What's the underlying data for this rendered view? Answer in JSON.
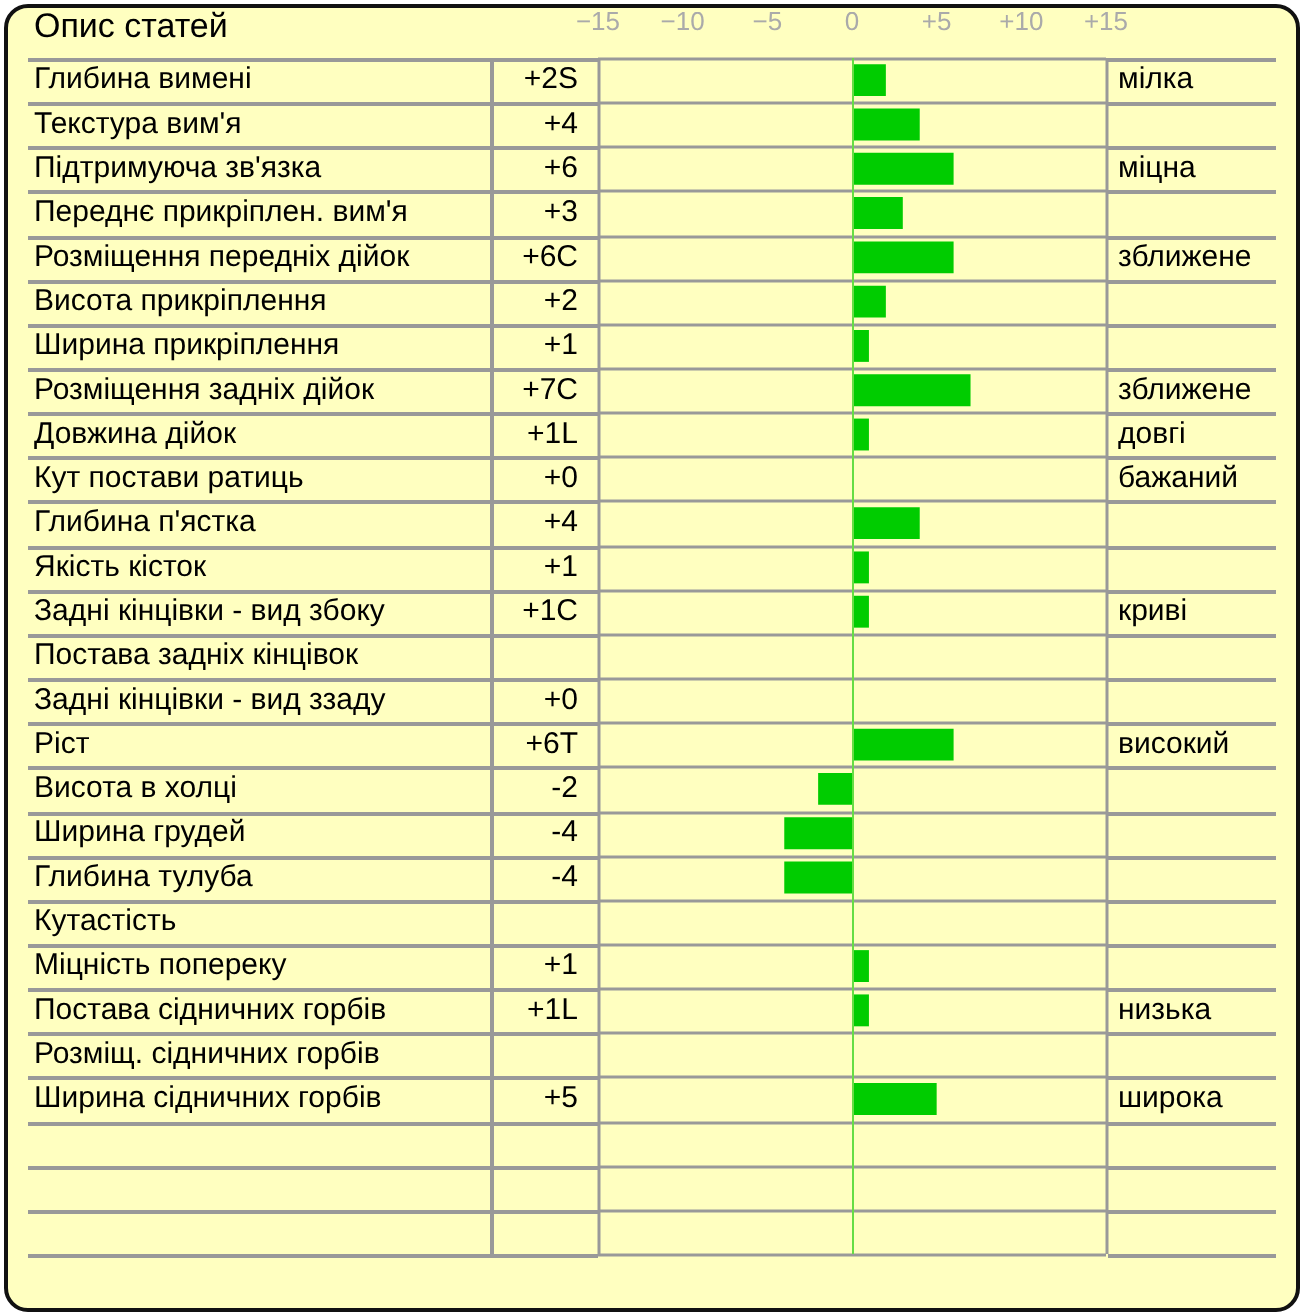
{
  "chart_data": {
    "type": "bar",
    "orientation": "horizontal",
    "title": "Опис статей",
    "categories": [
      "Глибина вимені",
      "Текстура вим'я",
      "Підтримуюча зв'язка",
      "Переднє прикріплен. вим'я",
      "Розміщення передніх дійок",
      "Висота прикріплення",
      "Ширина прикріплення",
      "Розміщення задніх дійок",
      "Довжина дійок",
      "Кут постави ратиць",
      "Глибина п'ястка",
      "Якість кісток",
      "Задні кінцівки - вид збоку",
      "Постава задніх кінцівок",
      "Задні кінцівки - вид ззаду",
      "Ріст",
      "Висота в холці",
      "Ширина грудей",
      "Глибина тулуба",
      "Кутастість",
      "Міцність попереку",
      "Постава сідничних горбів",
      "Розміщ. сідничних горбів",
      "Ширина сідничних горбів",
      null,
      null,
      null
    ],
    "values": [
      2,
      4,
      6,
      3,
      6,
      2,
      1,
      7,
      1,
      0,
      4,
      1,
      1,
      null,
      0,
      6,
      -2,
      -4,
      -4,
      null,
      1,
      1,
      null,
      5,
      null,
      null,
      null
    ],
    "value_labels": [
      "+2S",
      "+4",
      "+6",
      "+3",
      "+6C",
      "+2",
      "+1",
      "+7C",
      "+1L",
      "+0",
      "+4",
      "+1",
      "+1C",
      null,
      "+0",
      "+6T",
      "-2",
      "-4",
      "-4",
      null,
      "+1",
      "+1L",
      null,
      "+5",
      null,
      null,
      null
    ],
    "color": "#00cc00",
    "xlim": [
      -15,
      15
    ],
    "xticks": [
      {
        "value": -15,
        "label": "−15"
      },
      {
        "value": -10,
        "label": "−10"
      },
      {
        "value": -5,
        "label": "−5"
      },
      0,
      {
        "value": 5,
        "label": "+5"
      },
      {
        "value": 10,
        "label": "+10"
      },
      {
        "value": 15,
        "label": "+15"
      }
    ],
    "y2_categories": [
      "мілка",
      null,
      "міцна",
      null,
      "зближене",
      null,
      null,
      "зближене",
      "довгі",
      "бажаний",
      null,
      null,
      "криві",
      null,
      null,
      "високий",
      null,
      null,
      null,
      null,
      null,
      "низька",
      null,
      "широка",
      null,
      null,
      null
    ],
    "ref_lines": [
      {
        "axis": "x",
        "value": 0,
        "color": "#66dd44"
      }
    ],
    "grid": "y",
    "legend": false
  }
}
